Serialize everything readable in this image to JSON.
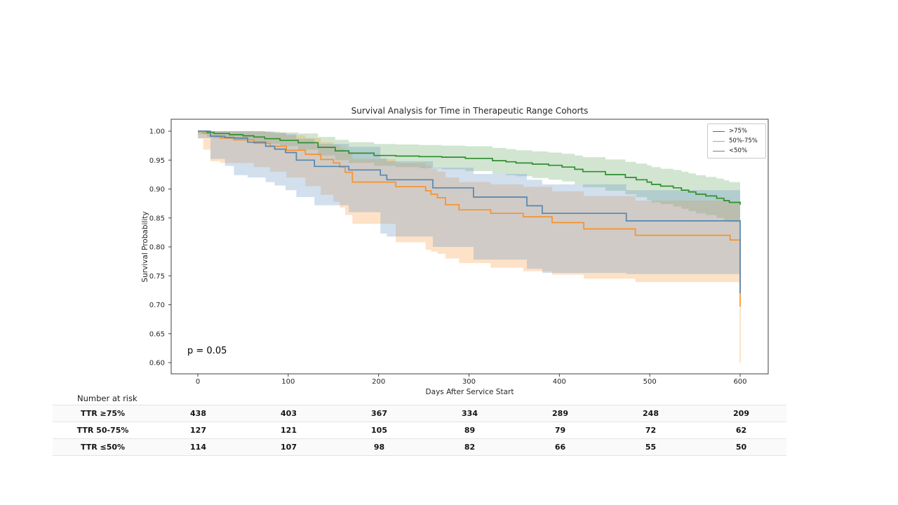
{
  "chart_data": {
    "type": "line",
    "subtype": "kaplan-meier-step",
    "title": "Survival Analysis for Time in Therapeutic Range Cohorts",
    "xlabel": "Days After Service Start",
    "ylabel": "Survival Probability",
    "annotation": "p = 0.05",
    "legend_position": "upper right",
    "xlim": [
      -30,
      631
    ],
    "ylim": [
      0.58,
      1.02
    ],
    "x_ticks": [
      0,
      100,
      200,
      300,
      400,
      500,
      600
    ],
    "y_ticks": [
      1.0,
      0.95,
      0.9,
      0.85,
      0.8,
      0.75,
      0.7,
      0.65,
      0.6
    ],
    "grid": false,
    "point_format": "[day, survival, ci_lower, ci_upper]",
    "series": [
      {
        "name": ">75%",
        "color": "#2f8f2f",
        "fill": "rgba(70,150,70,0.25)",
        "points": [
          [
            0,
            1.0,
            0.995,
            1.0
          ],
          [
            10,
            0.998,
            0.99,
            1.0
          ],
          [
            18,
            0.996,
            0.988,
            1.0
          ],
          [
            35,
            0.994,
            0.986,
            1.0
          ],
          [
            50,
            0.992,
            0.984,
            1.0
          ],
          [
            62,
            0.99,
            0.981,
            1.0
          ],
          [
            74,
            0.987,
            0.978,
            0.999
          ],
          [
            91,
            0.984,
            0.974,
            0.998
          ],
          [
            111,
            0.98,
            0.968,
            0.996
          ],
          [
            133,
            0.972,
            0.958,
            0.99
          ],
          [
            152,
            0.966,
            0.95,
            0.985
          ],
          [
            167,
            0.962,
            0.945,
            0.981
          ],
          [
            195,
            0.958,
            0.94,
            0.978
          ],
          [
            219,
            0.957,
            0.938,
            0.977
          ],
          [
            245,
            0.956,
            0.936,
            0.976
          ],
          [
            270,
            0.955,
            0.934,
            0.975
          ],
          [
            296,
            0.953,
            0.931,
            0.974
          ],
          [
            326,
            0.949,
            0.926,
            0.971
          ],
          [
            341,
            0.947,
            0.924,
            0.969
          ],
          [
            352,
            0.945,
            0.922,
            0.967
          ],
          [
            370,
            0.943,
            0.919,
            0.965
          ],
          [
            388,
            0.941,
            0.916,
            0.963
          ],
          [
            403,
            0.938,
            0.913,
            0.961
          ],
          [
            417,
            0.934,
            0.908,
            0.958
          ],
          [
            426,
            0.93,
            0.903,
            0.955
          ],
          [
            451,
            0.925,
            0.897,
            0.951
          ],
          [
            473,
            0.92,
            0.891,
            0.947
          ],
          [
            485,
            0.916,
            0.886,
            0.944
          ],
          [
            497,
            0.912,
            0.881,
            0.941
          ],
          [
            502,
            0.908,
            0.877,
            0.938
          ],
          [
            512,
            0.905,
            0.874,
            0.935
          ],
          [
            526,
            0.902,
            0.87,
            0.933
          ],
          [
            535,
            0.898,
            0.866,
            0.93
          ],
          [
            543,
            0.895,
            0.862,
            0.927
          ],
          [
            551,
            0.891,
            0.858,
            0.924
          ],
          [
            562,
            0.888,
            0.855,
            0.921
          ],
          [
            574,
            0.884,
            0.85,
            0.918
          ],
          [
            582,
            0.88,
            0.846,
            0.915
          ],
          [
            588,
            0.877,
            0.843,
            0.912
          ],
          [
            600,
            0.873,
            0.84,
            0.91
          ]
        ]
      },
      {
        "name": "50%-75%",
        "color": "#f7922d",
        "fill": "rgba(248,160,70,0.30)",
        "points": [
          [
            0,
            1.0,
            0.987,
            1.0
          ],
          [
            6,
            0.996,
            0.968,
            1.0
          ],
          [
            14,
            0.992,
            0.948,
            1.0
          ],
          [
            25,
            0.988,
            0.945,
            1.0
          ],
          [
            40,
            0.985,
            0.945,
            1.0
          ],
          [
            62,
            0.979,
            0.938,
            0.999
          ],
          [
            80,
            0.974,
            0.93,
            0.997
          ],
          [
            98,
            0.967,
            0.92,
            0.993
          ],
          [
            119,
            0.96,
            0.905,
            0.988
          ],
          [
            136,
            0.951,
            0.89,
            0.981
          ],
          [
            150,
            0.945,
            0.878,
            0.976
          ],
          [
            157,
            0.938,
            0.868,
            0.971
          ],
          [
            163,
            0.929,
            0.855,
            0.964
          ],
          [
            171,
            0.912,
            0.84,
            0.952
          ],
          [
            219,
            0.904,
            0.808,
            0.945
          ],
          [
            252,
            0.897,
            0.795,
            0.94
          ],
          [
            258,
            0.891,
            0.792,
            0.935
          ],
          [
            265,
            0.885,
            0.788,
            0.93
          ],
          [
            274,
            0.873,
            0.78,
            0.92
          ],
          [
            289,
            0.864,
            0.772,
            0.912
          ],
          [
            324,
            0.858,
            0.764,
            0.908
          ],
          [
            360,
            0.852,
            0.758,
            0.904
          ],
          [
            392,
            0.842,
            0.752,
            0.896
          ],
          [
            427,
            0.831,
            0.745,
            0.888
          ],
          [
            484,
            0.82,
            0.739,
            0.88
          ],
          [
            589,
            0.812,
            0.739,
            0.876
          ],
          [
            600,
            0.697,
            0.739,
            0.876
          ]
        ]
      },
      {
        "name": "<50%",
        "color": "#5587b2",
        "fill": "rgba(105,150,195,0.30)",
        "points": [
          [
            0,
            1.0,
            0.988,
            1.0
          ],
          [
            14,
            0.991,
            0.952,
            1.0
          ],
          [
            30,
            0.989,
            0.94,
            1.0
          ],
          [
            40,
            0.988,
            0.924,
            1.0
          ],
          [
            55,
            0.981,
            0.92,
            1.0
          ],
          [
            75,
            0.974,
            0.912,
            0.999
          ],
          [
            85,
            0.969,
            0.906,
            0.997
          ],
          [
            97,
            0.963,
            0.898,
            0.995
          ],
          [
            109,
            0.95,
            0.886,
            0.987
          ],
          [
            129,
            0.939,
            0.872,
            0.978
          ],
          [
            167,
            0.933,
            0.86,
            0.973
          ],
          [
            202,
            0.924,
            0.823,
            0.953
          ],
          [
            209,
            0.916,
            0.818,
            0.948
          ],
          [
            260,
            0.902,
            0.8,
            0.937
          ],
          [
            305,
            0.886,
            0.778,
            0.926
          ],
          [
            364,
            0.871,
            0.762,
            0.916
          ],
          [
            381,
            0.858,
            0.755,
            0.908
          ],
          [
            474,
            0.845,
            0.753,
            0.898
          ],
          [
            600,
            0.72,
            0.753,
            0.898
          ]
        ]
      }
    ],
    "extras": [
      {
        "type": "vline",
        "x": 600,
        "y1": 0.697,
        "y2": 0.6,
        "color": "rgba(246,197,146,0.8)",
        "width": 1.2,
        "name": "censored-tail-line"
      }
    ]
  },
  "risk_table": {
    "header": "Number at risk",
    "time_points": [
      0,
      100,
      200,
      300,
      400,
      500,
      600
    ],
    "rows": [
      {
        "label": "TTR ≥75%",
        "values": [
          438,
          403,
          367,
          334,
          289,
          248,
          209
        ]
      },
      {
        "label": "TTR 50-75%",
        "values": [
          127,
          121,
          105,
          89,
          79,
          72,
          62
        ]
      },
      {
        "label": "TTR ≤50%",
        "values": [
          114,
          107,
          98,
          82,
          66,
          55,
          50
        ]
      }
    ]
  }
}
